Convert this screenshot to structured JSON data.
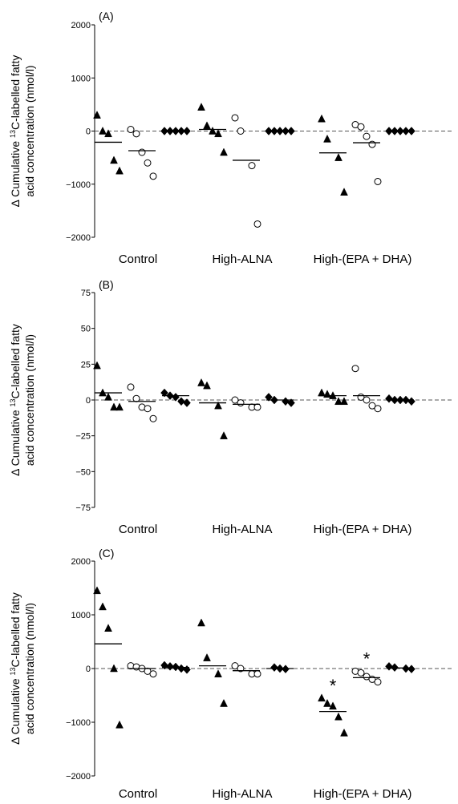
{
  "y_label_line1_parts": [
    "Δ Cumulative ",
    "13",
    "C-labelled fatty"
  ],
  "y_label_line2": "acid concentration (nmol/l)",
  "chart_data": [
    {
      "type": "scatter",
      "panel_label": "(A)",
      "ylim": [
        -2000,
        2000
      ],
      "yticks": [
        {
          "value": 2000,
          "label": "2000"
        },
        {
          "value": 1000,
          "label": "1000"
        },
        {
          "value": 0,
          "label": "0"
        },
        {
          "value": -1000,
          "label": "−1000"
        },
        {
          "value": -2000,
          "label": "−2000"
        }
      ],
      "groups": [
        "Control",
        "High-ALNA",
        "High-(EPA + DHA)"
      ],
      "subgroups": [
        {
          "group": 0,
          "marker": "triangle",
          "values": [
            300,
            0,
            -50,
            -550,
            -750
          ],
          "mean": -210,
          "significant": false
        },
        {
          "group": 0,
          "marker": "circle",
          "values": [
            30,
            -50,
            -400,
            -600,
            -850
          ],
          "mean": -370,
          "significant": false
        },
        {
          "group": 0,
          "marker": "diamond",
          "values": [
            0,
            0,
            0,
            0,
            0
          ],
          "mean": 0,
          "significant": false
        },
        {
          "group": 1,
          "marker": "triangle",
          "values": [
            450,
            100,
            0,
            -50,
            -400
          ],
          "mean": 30,
          "significant": false
        },
        {
          "group": 1,
          "marker": "circle",
          "values": [
            250,
            0,
            -650,
            -1750
          ],
          "mean": -550,
          "significant": false
        },
        {
          "group": 1,
          "marker": "diamond",
          "values": [
            0,
            0,
            0,
            0,
            0
          ],
          "mean": 0,
          "significant": false
        },
        {
          "group": 2,
          "marker": "triangle",
          "values": [
            230,
            -150,
            -500,
            -1150
          ],
          "mean": -410,
          "significant": false
        },
        {
          "group": 2,
          "marker": "circle",
          "values": [
            120,
            80,
            -100,
            -250,
            -950
          ],
          "mean": -220,
          "significant": false
        },
        {
          "group": 2,
          "marker": "diamond",
          "values": [
            0,
            0,
            0,
            0,
            0
          ],
          "mean": 0,
          "significant": false
        }
      ]
    },
    {
      "type": "scatter",
      "panel_label": "(B)",
      "ylim": [
        -75,
        75
      ],
      "yticks": [
        {
          "value": 75,
          "label": "75"
        },
        {
          "value": 50,
          "label": "50"
        },
        {
          "value": 25,
          "label": "25"
        },
        {
          "value": 0,
          "label": "0"
        },
        {
          "value": -25,
          "label": "−25"
        },
        {
          "value": -50,
          "label": "−50"
        },
        {
          "value": -75,
          "label": "−75"
        }
      ],
      "groups": [
        "Control",
        "High-ALNA",
        "High-(EPA + DHA)"
      ],
      "subgroups": [
        {
          "group": 0,
          "marker": "triangle",
          "values": [
            24,
            5,
            2,
            -5,
            -5
          ],
          "mean": 5,
          "significant": false
        },
        {
          "group": 0,
          "marker": "circle",
          "values": [
            9,
            1,
            -5,
            -6,
            -13
          ],
          "mean": -1,
          "significant": false
        },
        {
          "group": 0,
          "marker": "diamond",
          "values": [
            5,
            3,
            2,
            -1,
            -2
          ],
          "mean": 3,
          "significant": false
        },
        {
          "group": 1,
          "marker": "triangle",
          "values": [
            12,
            10,
            -4,
            -25
          ],
          "mean": -2,
          "significant": false
        },
        {
          "group": 1,
          "marker": "circle",
          "values": [
            0,
            -2,
            -5,
            -5
          ],
          "mean": -3,
          "significant": false
        },
        {
          "group": 1,
          "marker": "diamond",
          "values": [
            2,
            0,
            -1,
            -2
          ],
          "mean": 0,
          "significant": false
        },
        {
          "group": 2,
          "marker": "triangle",
          "values": [
            5,
            4,
            3,
            -1,
            -1
          ],
          "mean": 3,
          "significant": false
        },
        {
          "group": 2,
          "marker": "circle",
          "values": [
            22,
            2,
            0,
            -4,
            -6
          ],
          "mean": 3,
          "significant": false
        },
        {
          "group": 2,
          "marker": "diamond",
          "values": [
            1,
            0,
            0,
            0,
            -1
          ],
          "mean": 0,
          "significant": false
        }
      ]
    },
    {
      "type": "scatter",
      "panel_label": "(C)",
      "ylim": [
        -2000,
        2000
      ],
      "yticks": [
        {
          "value": 2000,
          "label": "2000"
        },
        {
          "value": 1000,
          "label": "1000"
        },
        {
          "value": 0,
          "label": "0"
        },
        {
          "value": -1000,
          "label": "−1000"
        },
        {
          "value": -2000,
          "label": "−2000"
        }
      ],
      "groups": [
        "Control",
        "High-ALNA",
        "High-(EPA + DHA)"
      ],
      "subgroups": [
        {
          "group": 0,
          "marker": "triangle",
          "values": [
            1450,
            1150,
            750,
            0,
            -1050
          ],
          "mean": 460,
          "significant": false
        },
        {
          "group": 0,
          "marker": "circle",
          "values": [
            50,
            30,
            0,
            -50,
            -100
          ],
          "mean": 0,
          "significant": false
        },
        {
          "group": 0,
          "marker": "diamond",
          "values": [
            60,
            40,
            30,
            0,
            -20
          ],
          "mean": 20,
          "significant": false
        },
        {
          "group": 1,
          "marker": "triangle",
          "values": [
            850,
            200,
            -100,
            -650
          ],
          "mean": 50,
          "significant": false
        },
        {
          "group": 1,
          "marker": "circle",
          "values": [
            50,
            0,
            -100,
            -100
          ],
          "mean": -40,
          "significant": false
        },
        {
          "group": 1,
          "marker": "diamond",
          "values": [
            20,
            0,
            -10
          ],
          "mean": 0,
          "significant": false
        },
        {
          "group": 2,
          "marker": "triangle",
          "values": [
            -550,
            -650,
            -700,
            -900,
            -1200
          ],
          "mean": -800,
          "significant": true
        },
        {
          "group": 2,
          "marker": "circle",
          "values": [
            -50,
            -80,
            -150,
            -200,
            -250
          ],
          "mean": -170,
          "significant": true
        },
        {
          "group": 2,
          "marker": "diamond",
          "values": [
            40,
            20,
            0,
            -10
          ],
          "mean": 10,
          "significant": false
        }
      ]
    }
  ],
  "significance_symbol": "*"
}
